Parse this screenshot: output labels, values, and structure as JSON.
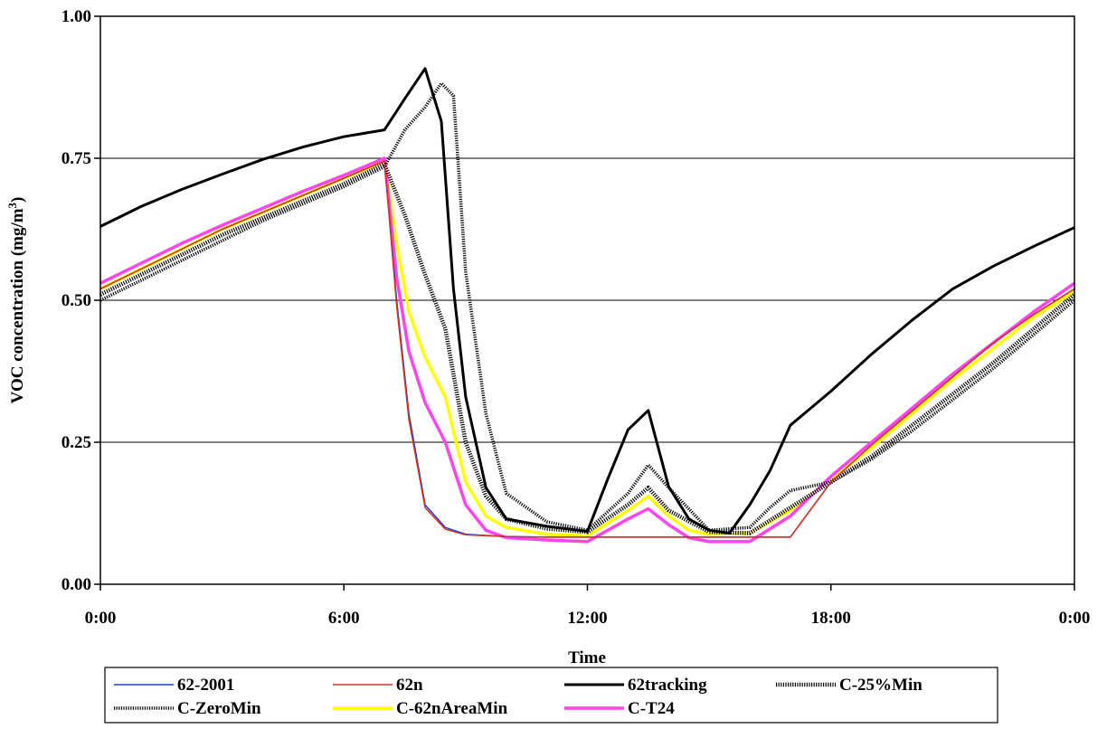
{
  "chart_data": {
    "type": "line",
    "title": "",
    "xlabel": "Time",
    "ylabel_main": "VOC concentration (mg/m",
    "ylabel_sup": "3",
    "ylabel_tail": ")",
    "xlim": [
      0,
      24
    ],
    "ylim": [
      0,
      1
    ],
    "x_ticks": [
      {
        "value": 0,
        "label": "0:00"
      },
      {
        "value": 6,
        "label": "6:00"
      },
      {
        "value": 12,
        "label": "12:00"
      },
      {
        "value": 18,
        "label": "18:00"
      },
      {
        "value": 24,
        "label": "0:00"
      }
    ],
    "y_ticks": [
      {
        "value": 0,
        "label": "0.00"
      },
      {
        "value": 0.25,
        "label": "0.25"
      },
      {
        "value": 0.5,
        "label": "0.50"
      },
      {
        "value": 0.75,
        "label": "0.75"
      },
      {
        "value": 1,
        "label": "1.00"
      }
    ],
    "grid": "horizontal",
    "legend_position": "bottom",
    "series": [
      {
        "name": "62-2001",
        "color": "#1f3fcf",
        "width": 1.5,
        "style": "solid",
        "x": [
          0,
          1,
          2,
          3,
          4,
          5,
          6,
          7,
          7.3,
          7.6,
          8,
          8.5,
          9,
          10,
          11,
          12,
          13,
          14,
          15,
          16,
          17,
          18,
          19,
          20,
          21,
          22,
          23,
          24
        ],
        "y": [
          0.52,
          0.555,
          0.59,
          0.625,
          0.655,
          0.685,
          0.715,
          0.745,
          0.5,
          0.3,
          0.14,
          0.1,
          0.088,
          0.084,
          0.083,
          0.083,
          0.083,
          0.083,
          0.083,
          0.083,
          0.083,
          0.18,
          0.245,
          0.305,
          0.365,
          0.425,
          0.475,
          0.52
        ]
      },
      {
        "name": "62n",
        "color": "#d8321e",
        "width": 1.5,
        "style": "solid",
        "x": [
          0,
          1,
          2,
          3,
          4,
          5,
          6,
          7,
          7.3,
          7.6,
          8,
          8.5,
          9,
          10,
          11,
          12,
          13,
          14,
          15,
          16,
          17,
          18,
          19,
          20,
          21,
          22,
          23,
          24
        ],
        "y": [
          0.52,
          0.555,
          0.59,
          0.625,
          0.655,
          0.685,
          0.715,
          0.745,
          0.49,
          0.29,
          0.135,
          0.097,
          0.087,
          0.084,
          0.083,
          0.083,
          0.083,
          0.083,
          0.083,
          0.083,
          0.083,
          0.18,
          0.245,
          0.305,
          0.365,
          0.425,
          0.475,
          0.52
        ]
      },
      {
        "name": "62tracking",
        "color": "#000000",
        "width": 3,
        "style": "solid",
        "x": [
          0,
          1,
          2,
          3,
          4,
          5,
          6,
          7,
          7.5,
          8,
          8.4,
          8.7,
          9,
          9.5,
          10,
          11,
          12,
          12.5,
          13,
          13.5,
          14,
          14.5,
          15,
          15.5,
          16,
          16.5,
          17,
          18,
          19,
          20,
          21,
          22,
          23,
          24
        ],
        "y": [
          0.63,
          0.665,
          0.695,
          0.722,
          0.748,
          0.77,
          0.788,
          0.8,
          0.855,
          0.908,
          0.815,
          0.52,
          0.33,
          0.17,
          0.115,
          0.102,
          0.093,
          0.185,
          0.272,
          0.306,
          0.172,
          0.115,
          0.095,
          0.09,
          0.14,
          0.2,
          0.28,
          0.34,
          0.405,
          0.465,
          0.52,
          0.56,
          0.595,
          0.628
        ]
      },
      {
        "name": "C-25%Min",
        "color": "#000000",
        "width": 3,
        "style": "dotted",
        "x": [
          0,
          1,
          2,
          3,
          4,
          5,
          6,
          7,
          7.5,
          8,
          8.5,
          9,
          9.5,
          10,
          11,
          12,
          13,
          13.5,
          14,
          15,
          16,
          17,
          18,
          19,
          20,
          21,
          22,
          23,
          24
        ],
        "y": [
          0.51,
          0.545,
          0.58,
          0.615,
          0.645,
          0.675,
          0.705,
          0.74,
          0.65,
          0.545,
          0.45,
          0.25,
          0.155,
          0.115,
          0.098,
          0.092,
          0.14,
          0.17,
          0.13,
          0.092,
          0.09,
          0.135,
          0.18,
          0.225,
          0.28,
          0.335,
          0.39,
          0.45,
          0.51
        ]
      },
      {
        "name": "C-ZeroMin",
        "color": "#000000",
        "width": 2,
        "style": "dotted",
        "x": [
          0,
          1,
          2,
          3,
          4,
          5,
          6,
          7,
          7.5,
          8,
          8.4,
          8.7,
          9,
          9.5,
          10,
          11,
          12,
          13,
          13.5,
          14,
          15,
          16,
          16.5,
          17,
          18,
          19,
          20,
          21,
          22,
          23,
          24
        ],
        "y": [
          0.5,
          0.535,
          0.57,
          0.605,
          0.64,
          0.67,
          0.7,
          0.735,
          0.8,
          0.84,
          0.882,
          0.86,
          0.55,
          0.3,
          0.16,
          0.11,
          0.095,
          0.16,
          0.21,
          0.17,
          0.095,
          0.1,
          0.135,
          0.165,
          0.18,
          0.22,
          0.27,
          0.325,
          0.38,
          0.44,
          0.5
        ]
      },
      {
        "name": "C-62nAreaMin",
        "color": "#ffff00",
        "width": 3.5,
        "style": "solid",
        "x": [
          0,
          1,
          2,
          3,
          4,
          5,
          6,
          7,
          7.3,
          7.6,
          8,
          8.5,
          9,
          9.5,
          10,
          11,
          12,
          13,
          13.5,
          14,
          14.5,
          15,
          16,
          17,
          18,
          19,
          20,
          21,
          22,
          23,
          24
        ],
        "y": [
          0.52,
          0.555,
          0.59,
          0.625,
          0.655,
          0.685,
          0.715,
          0.745,
          0.6,
          0.48,
          0.4,
          0.33,
          0.18,
          0.12,
          0.1,
          0.088,
          0.085,
          0.13,
          0.155,
          0.12,
          0.095,
          0.088,
          0.09,
          0.13,
          0.185,
          0.24,
          0.3,
          0.36,
          0.415,
          0.47,
          0.515
        ]
      },
      {
        "name": "C-T24",
        "color": "#ff44ee",
        "width": 3.5,
        "style": "solid",
        "x": [
          0,
          1,
          2,
          3,
          4,
          5,
          6,
          7,
          7.3,
          7.6,
          8,
          8.5,
          9,
          9.5,
          10,
          11,
          12,
          13,
          13.5,
          14,
          14.5,
          15,
          16,
          17,
          18,
          19,
          20,
          21,
          22,
          23,
          24
        ],
        "y": [
          0.53,
          0.565,
          0.6,
          0.632,
          0.662,
          0.692,
          0.72,
          0.75,
          0.54,
          0.41,
          0.32,
          0.25,
          0.14,
          0.095,
          0.082,
          0.078,
          0.075,
          0.115,
          0.133,
          0.105,
          0.082,
          0.075,
          0.075,
          0.12,
          0.19,
          0.25,
          0.31,
          0.37,
          0.425,
          0.48,
          0.53
        ]
      }
    ]
  }
}
